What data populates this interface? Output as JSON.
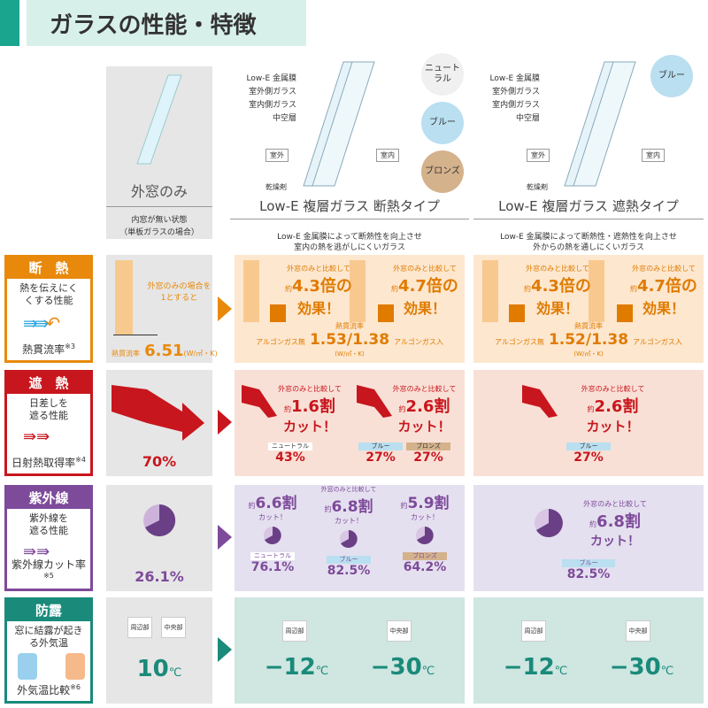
{
  "header": {
    "title": "ガラスの性能・特徴"
  },
  "colors": {
    "orange": "#e8890c",
    "red": "#c8161e",
    "purple": "#7e4a9a",
    "teal": "#1a8a7a"
  },
  "single": {
    "title": "外窓のみ",
    "note1": "内窓が無い状態",
    "note2": "（単板ガラスの場合）"
  },
  "glass": {
    "layers": [
      "Low-E 金属膜",
      "室外側ガラス",
      "室内側ガラス",
      "中空層"
    ],
    "outside": "室外",
    "inside": "室内",
    "desiccant": "乾燥剤",
    "insulation": {
      "title": "Low-E 複層ガラス 断熱タイプ",
      "desc1": "Low-E 金属膜によって断熱性を向上させ",
      "desc2": "室内の熱を逃がしにくいガラス",
      "colors": [
        "ニュートラル",
        "ブルー",
        "ブロンズ"
      ]
    },
    "shield": {
      "title": "Low-E 複層ガラス 遮熱タイプ",
      "desc1": "Low-E 金属膜によって断熱性・遮熱性を向上させ",
      "desc2": "外からの熱を通しにくいガラス",
      "colors": [
        "ブルー"
      ]
    }
  },
  "rows": {
    "dannetsu": {
      "title": "断　熱",
      "desc": "熱を伝えにくくする性能",
      "footer": "熱貫流率",
      "note": "※3",
      "single_note": "外窓のみの場合を1とすると",
      "single_label": "熱貫流率",
      "single_value": "6.51",
      "single_unit": "(W/㎡・K)",
      "compare": "外窓のみと比較して",
      "approx": "約",
      "effect": "効果！",
      "ins": {
        "v1": "4.3倍の",
        "v2": "4.7倍の",
        "argon_l": "アルゴンガス無",
        "argon_r": "アルゴンガス入",
        "label": "熱貫流率",
        "value": "1.53/1.38",
        "unit": "(W/㎡・K)"
      },
      "shd": {
        "v1": "4.3倍の",
        "v2": "4.7倍の",
        "argon_l": "アルゴンガス無",
        "argon_r": "アルゴンガス入",
        "label": "熱貫流率",
        "value": "1.52/1.38",
        "unit": "(W/㎡・K)"
      }
    },
    "shanetsu": {
      "title": "遮　熱",
      "desc": "日差しを遮る性能",
      "footer": "日射熱取得率",
      "note": "※4",
      "single_value": "70%",
      "compare": "外窓のみと比較して",
      "approx": "約",
      "cut": "カット！",
      "ins": {
        "c1": "1.6割",
        "c2": "2.6割",
        "vals": [
          {
            "tag": "ニュートラル",
            "v": "43%"
          },
          {
            "tag": "ブルー",
            "v": "27%"
          },
          {
            "tag": "ブロンズ",
            "v": "27%"
          }
        ]
      },
      "shd": {
        "c1": "2.6割",
        "vals": [
          {
            "tag": "ブルー",
            "v": "27%"
          }
        ]
      }
    },
    "uv": {
      "title": "紫外線",
      "desc": "紫外線を遮る性能",
      "footer": "紫外線カット率",
      "note": "※5",
      "single_value": "26.1%",
      "compare": "外窓のみと比較して",
      "approx": "約",
      "cut": "カット！",
      "ins": [
        {
          "c": "6.6割",
          "tag": "ニュートラル",
          "v": "76.1%"
        },
        {
          "c": "6.8割",
          "tag": "ブルー",
          "v": "82.5%"
        },
        {
          "c": "5.9割",
          "tag": "ブロンズ",
          "v": "64.2%"
        }
      ],
      "shd": {
        "c": "6.8割",
        "tag": "ブルー",
        "v": "82.5%"
      }
    },
    "dew": {
      "title": "防露",
      "desc": "窓に結露が起きる外気温",
      "footer": "外気温比較",
      "note": "※6",
      "edge": "周辺部",
      "center": "中央部",
      "single": "10",
      "ins": [
        "−12",
        "−30"
      ],
      "shd": [
        "−12",
        "−30"
      ],
      "unit": "℃"
    }
  }
}
